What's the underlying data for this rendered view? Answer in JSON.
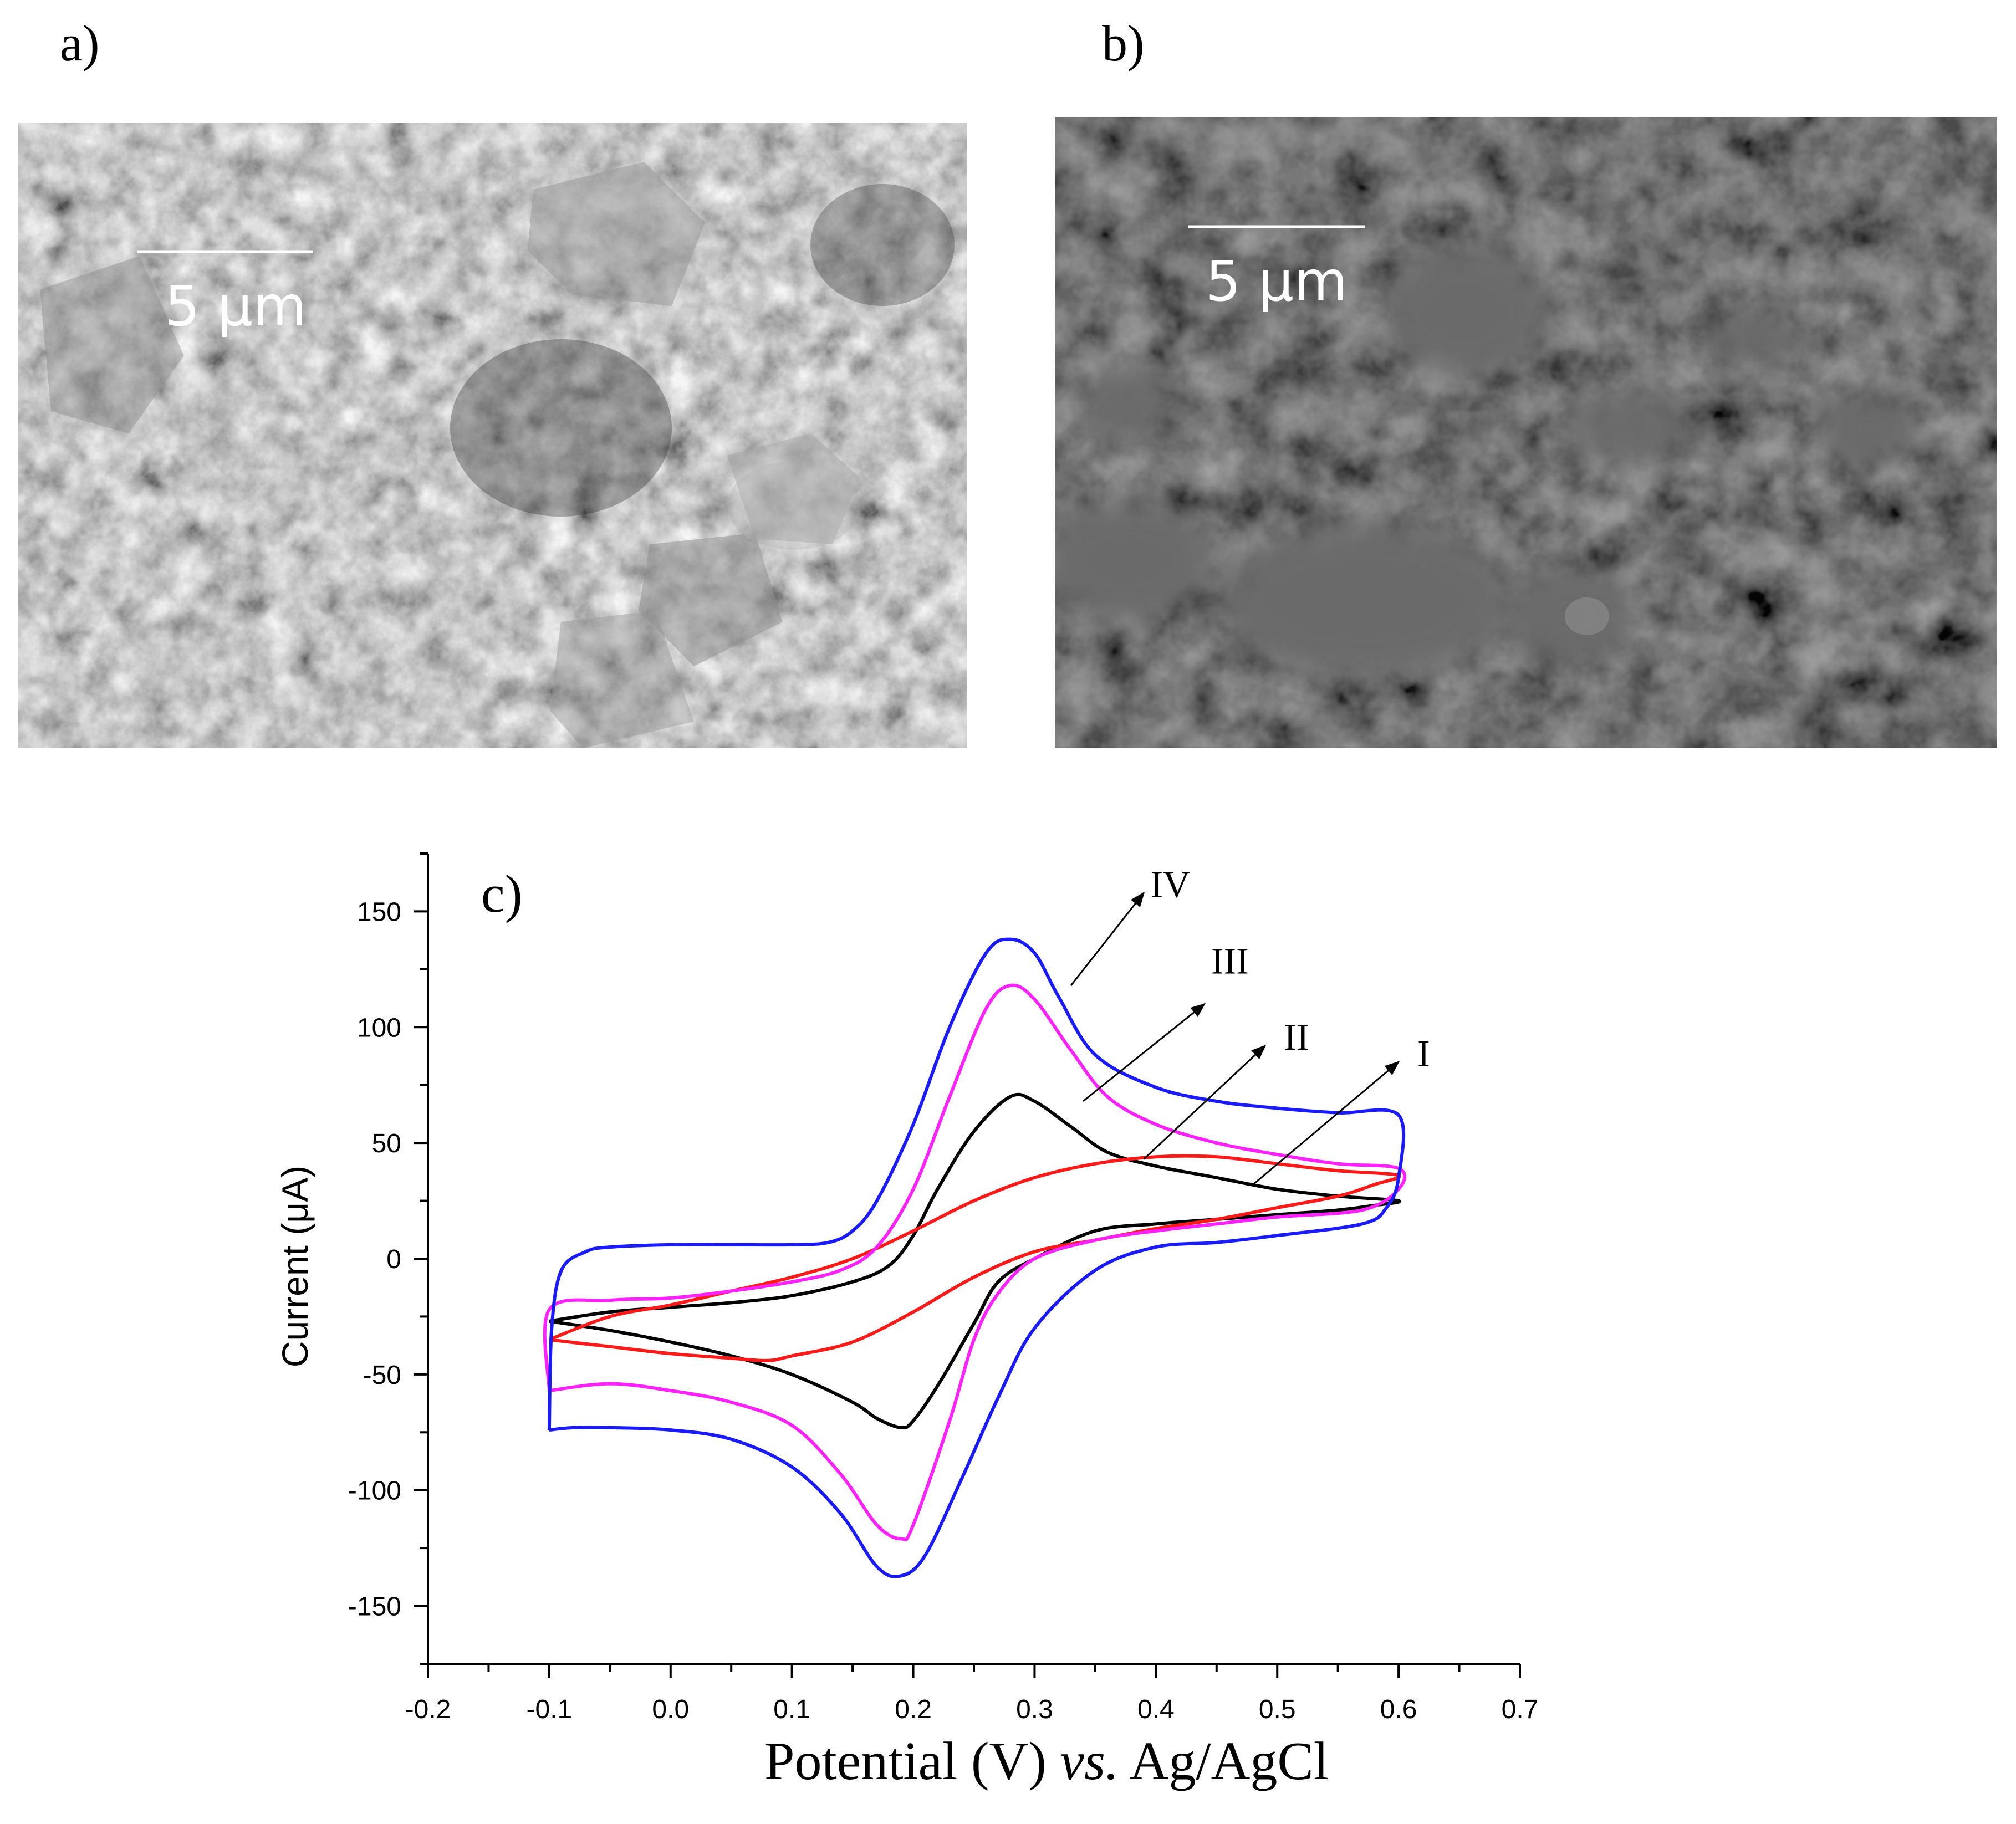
{
  "panels": {
    "a": {
      "letter": "a)",
      "scale_bar_label": "5 µm"
    },
    "b": {
      "letter": "b)",
      "scale_bar_label": "5 µm"
    },
    "c": {
      "letter": "c)"
    }
  },
  "colors": {
    "I": "#000000",
    "II": "#ff1a1a",
    "III": "#ff22ff",
    "IV": "#1a1aff",
    "sem_a_bg": "#6e6e6e",
    "sem_b_bg": "#2f2f2f"
  },
  "chart_data": {
    "type": "line",
    "title": "",
    "xlabel_main": "Potential (V) ",
    "xlabel_italic": "vs.",
    "xlabel_tail": " Ag/AgCl",
    "ylabel": "Current (μA)",
    "xlim": [
      -0.2,
      0.7
    ],
    "ylim": [
      -175,
      175
    ],
    "x_ticks": [
      -0.2,
      -0.1,
      0.0,
      0.1,
      0.2,
      0.3,
      0.4,
      0.5,
      0.6,
      0.7
    ],
    "x_tick_labels": [
      "-0.2",
      "-0.1",
      "0.0",
      "0.1",
      "0.2",
      "0.3",
      "0.4",
      "0.5",
      "0.6",
      "0.7"
    ],
    "y_ticks": [
      -150,
      -100,
      -50,
      0,
      50,
      100,
      150
    ],
    "y_tick_labels": [
      "-150",
      "-100",
      "-50",
      "0",
      "50",
      "100",
      "150"
    ],
    "grid": false,
    "series": [
      {
        "name": "I",
        "color_key": "I",
        "points": [
          [
            -0.1,
            -27
          ],
          [
            -0.05,
            -23
          ],
          [
            0.0,
            -21
          ],
          [
            0.05,
            -19
          ],
          [
            0.1,
            -16
          ],
          [
            0.15,
            -10
          ],
          [
            0.18,
            -3
          ],
          [
            0.2,
            10
          ],
          [
            0.22,
            30
          ],
          [
            0.25,
            55
          ],
          [
            0.28,
            70
          ],
          [
            0.3,
            68
          ],
          [
            0.33,
            57
          ],
          [
            0.36,
            46
          ],
          [
            0.4,
            40
          ],
          [
            0.45,
            35
          ],
          [
            0.5,
            30
          ],
          [
            0.55,
            27
          ],
          [
            0.6,
            25
          ],
          [
            0.58,
            23
          ],
          [
            0.55,
            21
          ],
          [
            0.5,
            19
          ],
          [
            0.45,
            17
          ],
          [
            0.4,
            15
          ],
          [
            0.35,
            12
          ],
          [
            0.3,
            0
          ],
          [
            0.27,
            -10
          ],
          [
            0.25,
            -28
          ],
          [
            0.22,
            -55
          ],
          [
            0.2,
            -70
          ],
          [
            0.19,
            -73
          ],
          [
            0.17,
            -69
          ],
          [
            0.15,
            -62
          ],
          [
            0.1,
            -50
          ],
          [
            0.05,
            -42
          ],
          [
            0.0,
            -36
          ],
          [
            -0.05,
            -31
          ],
          [
            -0.1,
            -27
          ]
        ]
      },
      {
        "name": "II",
        "color_key": "II",
        "points": [
          [
            -0.1,
            -35
          ],
          [
            -0.05,
            -25
          ],
          [
            0.0,
            -20
          ],
          [
            0.05,
            -14
          ],
          [
            0.1,
            -8
          ],
          [
            0.15,
            0
          ],
          [
            0.2,
            12
          ],
          [
            0.25,
            25
          ],
          [
            0.3,
            35
          ],
          [
            0.35,
            41
          ],
          [
            0.4,
            44
          ],
          [
            0.45,
            44
          ],
          [
            0.5,
            41
          ],
          [
            0.55,
            38
          ],
          [
            0.6,
            36
          ],
          [
            0.58,
            32
          ],
          [
            0.55,
            27
          ],
          [
            0.5,
            22
          ],
          [
            0.45,
            17
          ],
          [
            0.4,
            13
          ],
          [
            0.35,
            8
          ],
          [
            0.3,
            3
          ],
          [
            0.25,
            -8
          ],
          [
            0.2,
            -23
          ],
          [
            0.15,
            -36
          ],
          [
            0.1,
            -42
          ],
          [
            0.08,
            -44
          ],
          [
            0.05,
            -43
          ],
          [
            0.0,
            -41
          ],
          [
            -0.05,
            -38
          ],
          [
            -0.1,
            -35
          ]
        ]
      },
      {
        "name": "III",
        "color_key": "III",
        "points": [
          [
            -0.1,
            -57
          ],
          [
            -0.1,
            -22
          ],
          [
            -0.05,
            -18
          ],
          [
            0.0,
            -17
          ],
          [
            0.05,
            -14
          ],
          [
            0.1,
            -10
          ],
          [
            0.14,
            -5
          ],
          [
            0.17,
            5
          ],
          [
            0.2,
            30
          ],
          [
            0.23,
            70
          ],
          [
            0.26,
            108
          ],
          [
            0.28,
            118
          ],
          [
            0.3,
            112
          ],
          [
            0.33,
            90
          ],
          [
            0.36,
            70
          ],
          [
            0.4,
            58
          ],
          [
            0.45,
            50
          ],
          [
            0.5,
            45
          ],
          [
            0.55,
            41
          ],
          [
            0.6,
            39
          ],
          [
            0.6,
            30
          ],
          [
            0.57,
            21
          ],
          [
            0.5,
            18
          ],
          [
            0.45,
            15
          ],
          [
            0.4,
            12
          ],
          [
            0.35,
            8
          ],
          [
            0.3,
            0
          ],
          [
            0.27,
            -15
          ],
          [
            0.25,
            -35
          ],
          [
            0.23,
            -70
          ],
          [
            0.2,
            -115
          ],
          [
            0.19,
            -121
          ],
          [
            0.17,
            -115
          ],
          [
            0.14,
            -93
          ],
          [
            0.1,
            -72
          ],
          [
            0.05,
            -62
          ],
          [
            0.0,
            -57
          ],
          [
            -0.05,
            -54
          ],
          [
            -0.1,
            -57
          ]
        ]
      },
      {
        "name": "IV",
        "color_key": "IV",
        "points": [
          [
            -0.1,
            -74
          ],
          [
            -0.098,
            -30
          ],
          [
            -0.09,
            -5
          ],
          [
            -0.07,
            3
          ],
          [
            -0.05,
            5
          ],
          [
            0.0,
            6
          ],
          [
            0.05,
            6
          ],
          [
            0.1,
            6
          ],
          [
            0.13,
            7
          ],
          [
            0.15,
            12
          ],
          [
            0.17,
            25
          ],
          [
            0.2,
            58
          ],
          [
            0.23,
            100
          ],
          [
            0.26,
            132
          ],
          [
            0.28,
            138
          ],
          [
            0.3,
            132
          ],
          [
            0.32,
            113
          ],
          [
            0.35,
            88
          ],
          [
            0.4,
            74
          ],
          [
            0.45,
            68
          ],
          [
            0.5,
            65
          ],
          [
            0.55,
            63
          ],
          [
            0.6,
            62
          ],
          [
            0.6,
            35
          ],
          [
            0.59,
            22
          ],
          [
            0.57,
            15
          ],
          [
            0.5,
            10
          ],
          [
            0.45,
            7
          ],
          [
            0.4,
            5
          ],
          [
            0.35,
            -5
          ],
          [
            0.3,
            -30
          ],
          [
            0.27,
            -60
          ],
          [
            0.24,
            -95
          ],
          [
            0.21,
            -128
          ],
          [
            0.19,
            -137
          ],
          [
            0.17,
            -133
          ],
          [
            0.14,
            -110
          ],
          [
            0.1,
            -90
          ],
          [
            0.05,
            -78
          ],
          [
            0.0,
            -74
          ],
          [
            -0.05,
            -73
          ],
          [
            -0.08,
            -73
          ],
          [
            -0.1,
            -74
          ]
        ]
      }
    ],
    "annotations": [
      {
        "label": "IV",
        "tail": [
          0.33,
          118
        ],
        "head": [
          0.39,
          158
        ],
        "text_at": [
          0.39,
          161
        ]
      },
      {
        "label": "III",
        "tail": [
          0.34,
          68
        ],
        "head": [
          0.44,
          110
        ],
        "text_at": [
          0.44,
          128
        ]
      },
      {
        "label": "II",
        "tail": [
          0.39,
          43
        ],
        "head": [
          0.49,
          92
        ],
        "text_at": [
          0.5,
          95
        ]
      },
      {
        "label": "I",
        "tail": [
          0.48,
          32
        ],
        "head": [
          0.6,
          85
        ],
        "text_at": [
          0.61,
          88
        ]
      }
    ]
  }
}
